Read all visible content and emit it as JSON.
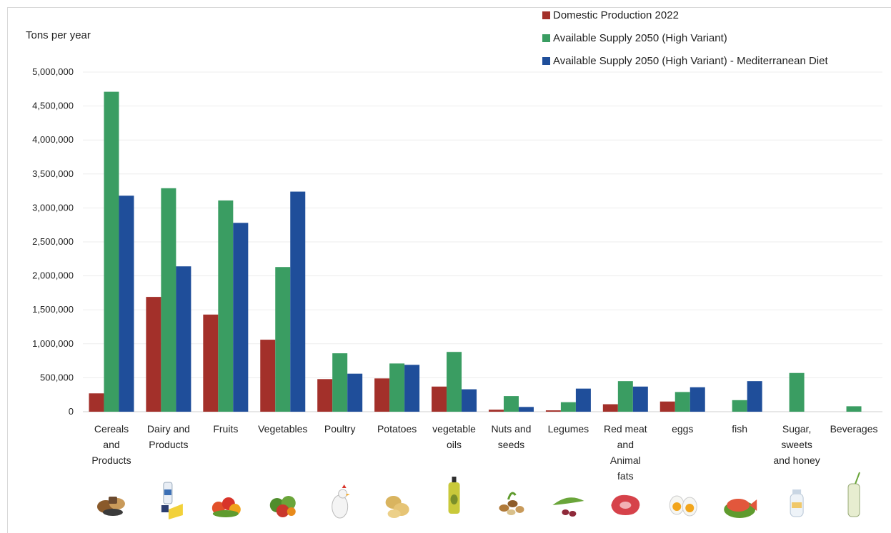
{
  "chart_data": {
    "type": "bar",
    "ylabel": "Tons per year",
    "ylim": [
      0,
      5000000
    ],
    "yticks": [
      0,
      500000,
      1000000,
      1500000,
      2000000,
      2500000,
      3000000,
      3500000,
      4000000,
      4500000,
      5000000
    ],
    "ytick_labels": [
      "0",
      "500,000",
      "1,000,000",
      "1,500,000",
      "2,000,000",
      "2,500,000",
      "3,000,000",
      "3,500,000",
      "4,000,000",
      "4,500,000",
      "5,000,000"
    ],
    "grid": true,
    "legend_position": "top-right",
    "categories": [
      {
        "label": [
          "Cereals",
          "and",
          "Products"
        ],
        "icon": "cereals-icon"
      },
      {
        "label": [
          "Dairy  and",
          "Products"
        ],
        "icon": "dairy-icon"
      },
      {
        "label": [
          "Fruits"
        ],
        "icon": "fruits-icon"
      },
      {
        "label": [
          "Vegetables"
        ],
        "icon": "vegetables-icon"
      },
      {
        "label": [
          "Poultry"
        ],
        "icon": "poultry-icon"
      },
      {
        "label": [
          "Potatoes"
        ],
        "icon": "potatoes-icon"
      },
      {
        "label": [
          "vegetable",
          "oils"
        ],
        "icon": "oil-icon"
      },
      {
        "label": [
          "Nuts and",
          "seeds"
        ],
        "icon": "nuts-icon"
      },
      {
        "label": [
          "Legumes"
        ],
        "icon": "legumes-icon"
      },
      {
        "label": [
          "Red meat",
          "and",
          "Animal",
          "fats"
        ],
        "icon": "meat-icon"
      },
      {
        "label": [
          "eggs"
        ],
        "icon": "eggs-icon"
      },
      {
        "label": [
          "fish"
        ],
        "icon": "fish-icon"
      },
      {
        "label": [
          "Sugar,",
          "sweets",
          "and honey"
        ],
        "icon": "sugar-icon"
      },
      {
        "label": [
          "Beverages"
        ],
        "icon": "beverages-icon"
      }
    ],
    "series": [
      {
        "name": "Domestic Production 2022",
        "color": "#A3302A",
        "values": [
          270000,
          1690000,
          1430000,
          1060000,
          480000,
          490000,
          370000,
          30000,
          20000,
          110000,
          150000,
          0,
          0,
          0
        ]
      },
      {
        "name": "Available Supply 2050 (High Variant)",
        "color": "#3A9D62",
        "values": [
          4710000,
          3290000,
          3110000,
          2130000,
          860000,
          710000,
          880000,
          230000,
          140000,
          450000,
          290000,
          170000,
          570000,
          80000
        ]
      },
      {
        "name": "Available Supply 2050 (High Variant) - Mediterranean Diet",
        "color": "#1F4E9A",
        "values": [
          3180000,
          2140000,
          2780000,
          3240000,
          560000,
          690000,
          330000,
          70000,
          340000,
          370000,
          360000,
          450000,
          0,
          0
        ]
      }
    ]
  }
}
